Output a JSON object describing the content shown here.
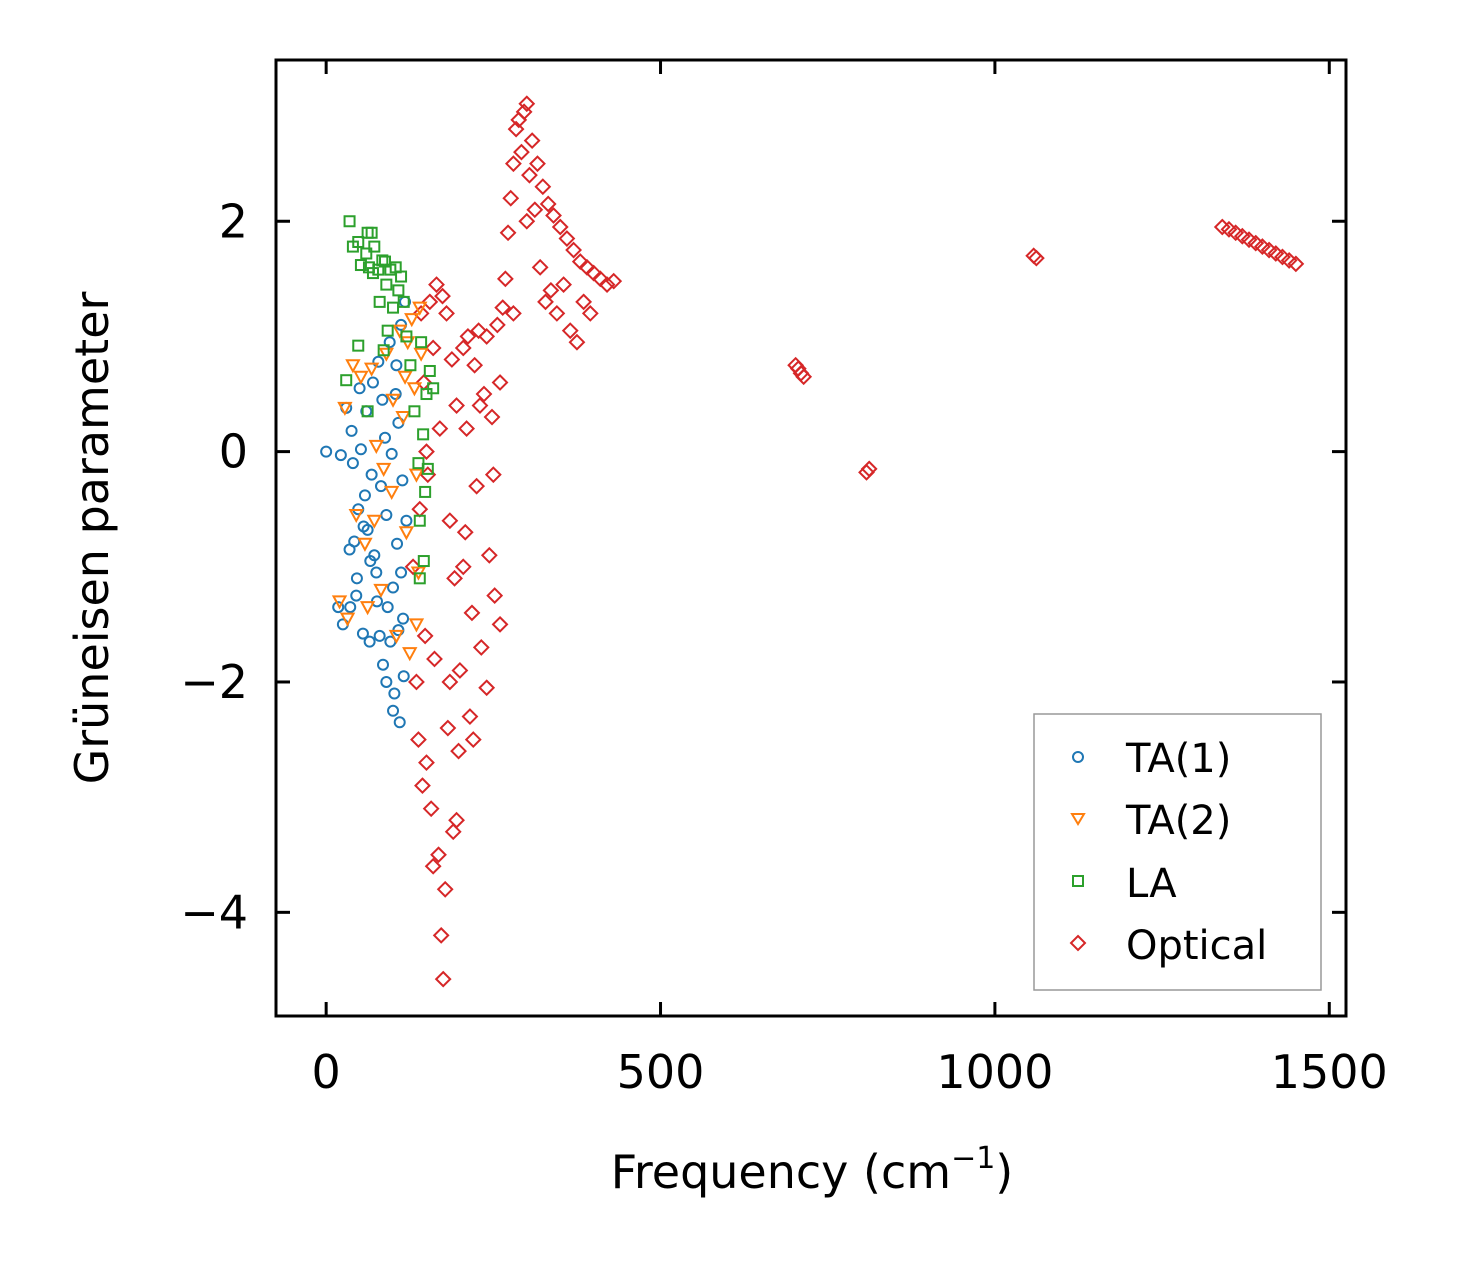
{
  "chart_data": {
    "type": "scatter",
    "title": "",
    "xlabel": "Frequency (cm",
    "xlabel_sup": "−1",
    "xlabel_end": ")",
    "ylabel": "Grüneisen parameter",
    "xlim": [
      -75,
      1525
    ],
    "ylim": [
      -4.9,
      3.4
    ],
    "xticks": [
      0,
      500,
      1000,
      1500
    ],
    "xtick_labels": [
      "0",
      "500",
      "1000",
      "1500"
    ],
    "yticks": [
      -4,
      -2,
      0,
      2
    ],
    "ytick_labels": [
      "−4",
      "−2",
      "0",
      "2"
    ],
    "grid": false,
    "legend_position": "lower-right",
    "legend": [
      "TA(1)",
      "TA(2)",
      "LA",
      "Optical"
    ],
    "series": [
      {
        "name": "TA(1)",
        "marker": "circle",
        "color": "#1f77b4",
        "points": [
          [
            0,
            0.0
          ],
          [
            22,
            -0.03
          ],
          [
            30,
            0.38
          ],
          [
            35,
            -0.85
          ],
          [
            38,
            0.18
          ],
          [
            40,
            -0.1
          ],
          [
            42,
            -0.78
          ],
          [
            45,
            -1.25
          ],
          [
            48,
            -0.5
          ],
          [
            50,
            0.55
          ],
          [
            52,
            0.02
          ],
          [
            55,
            -1.58
          ],
          [
            58,
            -0.38
          ],
          [
            60,
            0.35
          ],
          [
            62,
            -0.68
          ],
          [
            65,
            -1.65
          ],
          [
            68,
            -0.2
          ],
          [
            70,
            0.6
          ],
          [
            72,
            -0.9
          ],
          [
            75,
            -1.05
          ],
          [
            78,
            0.78
          ],
          [
            80,
            -1.6
          ],
          [
            82,
            -0.3
          ],
          [
            85,
            -1.85
          ],
          [
            88,
            0.12
          ],
          [
            90,
            -0.55
          ],
          [
            92,
            -1.35
          ],
          [
            95,
            0.95
          ],
          [
            98,
            -0.02
          ],
          [
            100,
            -1.18
          ],
          [
            102,
            -2.1
          ],
          [
            104,
            0.5
          ],
          [
            106,
            -0.8
          ],
          [
            108,
            -1.55
          ],
          [
            110,
            -2.35
          ],
          [
            112,
            1.1
          ],
          [
            114,
            -0.25
          ],
          [
            116,
            -1.95
          ],
          [
            118,
            1.3
          ],
          [
            120,
            -0.6
          ],
          [
            108,
            0.25
          ],
          [
            96,
            -1.65
          ],
          [
            84,
            0.45
          ],
          [
            76,
            -1.3
          ],
          [
            66,
            -0.95
          ],
          [
            56,
            -0.65
          ],
          [
            46,
            -1.1
          ],
          [
            36,
            -1.35
          ],
          [
            25,
            -1.5
          ],
          [
            18,
            -1.35
          ],
          [
            105,
            0.75
          ],
          [
            115,
            -1.45
          ],
          [
            90,
            -2.0
          ],
          [
            100,
            -2.25
          ],
          [
            112,
            -1.05
          ]
        ]
      },
      {
        "name": "TA(2)",
        "marker": "triangle-down",
        "color": "#ff7f0e",
        "points": [
          [
            20,
            -1.3
          ],
          [
            28,
            0.38
          ],
          [
            32,
            -1.45
          ],
          [
            40,
            0.75
          ],
          [
            45,
            -0.55
          ],
          [
            52,
            0.65
          ],
          [
            58,
            -0.8
          ],
          [
            62,
            -1.35
          ],
          [
            68,
            0.72
          ],
          [
            75,
            0.05
          ],
          [
            82,
            -1.2
          ],
          [
            90,
            0.85
          ],
          [
            98,
            -0.35
          ],
          [
            105,
            -1.6
          ],
          [
            110,
            1.05
          ],
          [
            115,
            0.3
          ],
          [
            120,
            -0.7
          ],
          [
            125,
            -1.75
          ],
          [
            128,
            1.15
          ],
          [
            132,
            0.55
          ],
          [
            135,
            -0.2
          ],
          [
            138,
            -1.05
          ],
          [
            140,
            1.25
          ],
          [
            142,
            0.85
          ],
          [
            135,
            -1.5
          ],
          [
            118,
            0.65
          ],
          [
            100,
            0.45
          ],
          [
            86,
            -0.15
          ],
          [
            72,
            -0.6
          ],
          [
            122,
            0.95
          ]
        ]
      },
      {
        "name": "LA",
        "marker": "square",
        "color": "#2ca02c",
        "points": [
          [
            30,
            0.62
          ],
          [
            40,
            1.78
          ],
          [
            48,
            1.82
          ],
          [
            35,
            2.0
          ],
          [
            48,
            0.92
          ],
          [
            52,
            1.62
          ],
          [
            60,
            1.72
          ],
          [
            62,
            1.9
          ],
          [
            64,
            1.6
          ],
          [
            68,
            1.9
          ],
          [
            70,
            1.55
          ],
          [
            72,
            1.78
          ],
          [
            78,
            1.58
          ],
          [
            80,
            1.3
          ],
          [
            84,
            1.66
          ],
          [
            88,
            1.65
          ],
          [
            90,
            1.45
          ],
          [
            92,
            1.05
          ],
          [
            96,
            1.58
          ],
          [
            100,
            1.25
          ],
          [
            104,
            1.6
          ],
          [
            108,
            1.4
          ],
          [
            112,
            1.52
          ],
          [
            116,
            1.3
          ],
          [
            120,
            1.0
          ],
          [
            126,
            0.75
          ],
          [
            132,
            0.35
          ],
          [
            138,
            -0.1
          ],
          [
            140,
            -0.6
          ],
          [
            142,
            0.95
          ],
          [
            145,
            0.15
          ],
          [
            148,
            -0.35
          ],
          [
            150,
            0.5
          ],
          [
            152,
            -0.15
          ],
          [
            155,
            0.7
          ],
          [
            146,
            -0.95
          ],
          [
            140,
            -1.1
          ],
          [
            160,
            0.55
          ],
          [
            86,
            0.88
          ],
          [
            62,
            0.35
          ]
        ]
      },
      {
        "name": "Optical",
        "marker": "diamond",
        "color": "#d62728",
        "points": [
          [
            130,
            -1.0
          ],
          [
            135,
            -2.0
          ],
          [
            138,
            -2.5
          ],
          [
            140,
            -0.5
          ],
          [
            142,
            1.2
          ],
          [
            144,
            -2.9
          ],
          [
            146,
            0.6
          ],
          [
            148,
            -1.6
          ],
          [
            150,
            -2.7
          ],
          [
            152,
            -0.2
          ],
          [
            155,
            1.3
          ],
          [
            157,
            -3.1
          ],
          [
            160,
            0.9
          ],
          [
            162,
            -1.8
          ],
          [
            165,
            1.45
          ],
          [
            168,
            -3.5
          ],
          [
            170,
            0.2
          ],
          [
            172,
            -4.2
          ],
          [
            174,
            1.35
          ],
          [
            175,
            -4.58
          ],
          [
            178,
            -3.8
          ],
          [
            180,
            1.2
          ],
          [
            182,
            -2.4
          ],
          [
            185,
            -0.6
          ],
          [
            188,
            0.8
          ],
          [
            190,
            -3.3
          ],
          [
            192,
            -1.1
          ],
          [
            195,
            0.4
          ],
          [
            198,
            -2.6
          ],
          [
            200,
            -1.9
          ],
          [
            205,
            0.9
          ],
          [
            208,
            -0.7
          ],
          [
            212,
            1.0
          ],
          [
            215,
            -2.3
          ],
          [
            218,
            -1.4
          ],
          [
            222,
            0.75
          ],
          [
            225,
            -0.3
          ],
          [
            228,
            1.05
          ],
          [
            232,
            -1.7
          ],
          [
            236,
            0.5
          ],
          [
            240,
            -2.05
          ],
          [
            244,
            -0.9
          ],
          [
            248,
            0.3
          ],
          [
            252,
            -1.25
          ],
          [
            256,
            1.1
          ],
          [
            260,
            0.6
          ],
          [
            264,
            1.25
          ],
          [
            268,
            1.5
          ],
          [
            272,
            1.9
          ],
          [
            276,
            2.2
          ],
          [
            280,
            2.5
          ],
          [
            284,
            2.8
          ],
          [
            288,
            2.88
          ],
          [
            292,
            2.6
          ],
          [
            296,
            2.95
          ],
          [
            300,
            3.02
          ],
          [
            304,
            2.4
          ],
          [
            308,
            2.7
          ],
          [
            312,
            2.1
          ],
          [
            316,
            2.5
          ],
          [
            320,
            1.6
          ],
          [
            324,
            2.3
          ],
          [
            328,
            1.3
          ],
          [
            332,
            2.15
          ],
          [
            336,
            1.4
          ],
          [
            340,
            2.05
          ],
          [
            345,
            1.2
          ],
          [
            350,
            1.95
          ],
          [
            355,
            1.45
          ],
          [
            360,
            1.85
          ],
          [
            365,
            1.05
          ],
          [
            370,
            1.75
          ],
          [
            375,
            0.95
          ],
          [
            380,
            1.65
          ],
          [
            385,
            1.3
          ],
          [
            390,
            1.6
          ],
          [
            395,
            1.2
          ],
          [
            400,
            1.55
          ],
          [
            410,
            1.5
          ],
          [
            420,
            1.45
          ],
          [
            430,
            1.48
          ],
          [
            240,
            1.0
          ],
          [
            230,
            0.4
          ],
          [
            205,
            -1.0
          ],
          [
            185,
            -2.0
          ],
          [
            160,
            -3.6
          ],
          [
            150,
            0.0
          ],
          [
            210,
            0.2
          ],
          [
            250,
            -0.2
          ],
          [
            280,
            1.2
          ],
          [
            300,
            2.0
          ],
          [
            260,
            -1.5
          ],
          [
            220,
            -2.5
          ],
          [
            195,
            -3.2
          ],
          [
            706,
            0.72
          ],
          [
            710,
            0.68
          ],
          [
            714,
            0.65
          ],
          [
            702,
            0.75
          ],
          [
            812,
            -0.15
          ],
          [
            808,
            -0.18
          ],
          [
            1062,
            1.68
          ],
          [
            1058,
            1.7
          ],
          [
            1340,
            1.95
          ],
          [
            1350,
            1.93
          ],
          [
            1360,
            1.9
          ],
          [
            1370,
            1.87
          ],
          [
            1380,
            1.84
          ],
          [
            1390,
            1.81
          ],
          [
            1400,
            1.78
          ],
          [
            1410,
            1.75
          ],
          [
            1420,
            1.72
          ],
          [
            1430,
            1.69
          ],
          [
            1440,
            1.66
          ],
          [
            1450,
            1.63
          ]
        ]
      }
    ]
  }
}
